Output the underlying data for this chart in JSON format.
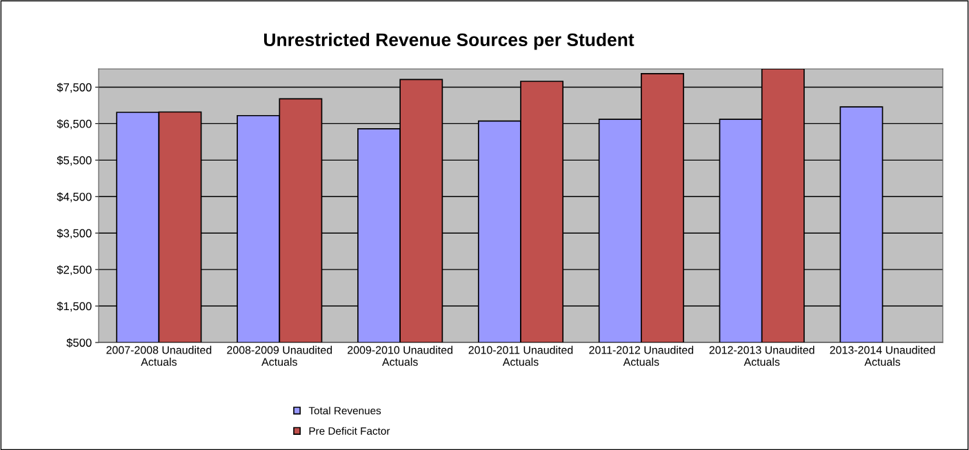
{
  "chart_data": {
    "type": "bar",
    "title": "Unrestricted Revenue Sources per Student",
    "categories": [
      "2007-2008 Unaudited Actuals",
      "2008-2009 Unaudited Actuals",
      "2009-2010 Unaudited Actuals",
      "2010-2011 Unaudited Actuals",
      "2011-2012 Unaudited Actuals",
      "2012-2013 Unaudited Actuals",
      "2013-2014 Unaudited Actuals"
    ],
    "series": [
      {
        "name": "Total Revenues",
        "color": "#9999ff",
        "values": [
          6810,
          6720,
          6360,
          6570,
          6620,
          6620,
          6960
        ]
      },
      {
        "name": "Pre Deficit Factor",
        "color": "#c0504d",
        "values": [
          6820,
          7180,
          7710,
          7660,
          7870,
          8000,
          null
        ]
      }
    ],
    "ylim": [
      500,
      8000
    ],
    "yticks": [
      {
        "value": 500,
        "label": "$500"
      },
      {
        "value": 1500,
        "label": "$1,500"
      },
      {
        "value": 2500,
        "label": "$2,500"
      },
      {
        "value": 3500,
        "label": "$3,500"
      },
      {
        "value": 4500,
        "label": "$4,500"
      },
      {
        "value": 5500,
        "label": "$5,500"
      },
      {
        "value": 6500,
        "label": "$6,500"
      },
      {
        "value": 7500,
        "label": "$7,500"
      }
    ],
    "grid": "y",
    "legend": "bottom"
  }
}
